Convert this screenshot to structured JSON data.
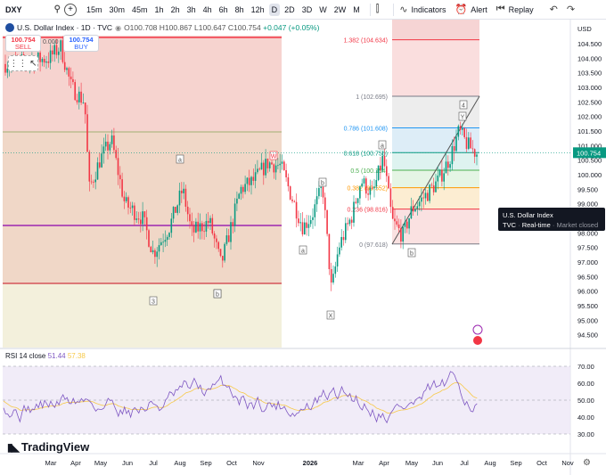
{
  "toolbar": {
    "symbol": "DXY",
    "intervals": [
      "15m",
      "30m",
      "45m",
      "1h",
      "2h",
      "3h",
      "4h",
      "6h",
      "8h",
      "12h",
      "D",
      "2D",
      "3D",
      "W",
      "2W",
      "M"
    ],
    "active_interval": "D",
    "indicators_label": "Indicators",
    "alert_label": "Alert",
    "replay_label": "Replay"
  },
  "legend": {
    "title": "U.S. Dollar Index · 1D · TVC",
    "open": "O100.708",
    "high": "H100.867",
    "low": "L100.647",
    "close": "C100.754",
    "change": "+0.047 (+0.05%)"
  },
  "trade": {
    "sell_price": "100.754",
    "sell_label": "SELL",
    "spread": "0.000",
    "buy_price": "100.754",
    "buy_label": "BUY"
  },
  "price_axis": {
    "currency": "USD",
    "ticks": [
      "104.500",
      "104.000",
      "103.500",
      "103.000",
      "102.500",
      "102.000",
      "101.500",
      "101.000",
      "100.500",
      "100.000",
      "99.500",
      "99.000",
      "98.500",
      "98.000",
      "97.500",
      "97.000",
      "96.500",
      "96.000",
      "95.500",
      "95.000",
      "94.500"
    ],
    "last_price": "100.754"
  },
  "fib": [
    {
      "level": "1.382",
      "price": "104.634",
      "color": "#f23645"
    },
    {
      "level": "1",
      "price": "102.695",
      "color": "#787b86"
    },
    {
      "level": "0.786",
      "price": "101.608",
      "color": "#2196f3"
    },
    {
      "level": "0.618",
      "price": "100.756",
      "color": "#089981"
    },
    {
      "level": "0.5",
      "price": "100.154",
      "color": "#4caf50"
    },
    {
      "level": "0.382",
      "price": "99.552",
      "color": "#ff9800"
    },
    {
      "level": "0.236",
      "price": "98.816",
      "color": "#f23645"
    },
    {
      "level": "0",
      "price": "97.618",
      "color": "#787b86"
    }
  ],
  "wave_labels": [
    "W",
    "a",
    "b",
    "a",
    "X",
    "b",
    "a",
    "b",
    "4",
    "Y",
    "3",
    "b"
  ],
  "tooltip": {
    "title": "U.S. Dollar Index",
    "exchange": "TVC",
    "mode": "Real-time",
    "status": "Market closed"
  },
  "rsi": {
    "title": "RSI 14 close",
    "value": "51.44",
    "ma": "57.38",
    "ticks": [
      "70.00",
      "60.00",
      "50.00",
      "40.00",
      "30.00"
    ]
  },
  "time_axis": [
    "Mar",
    "Apr",
    "May",
    "Jun",
    "Jul",
    "Aug",
    "Sep",
    "Oct",
    "Nov",
    "2026",
    "Mar",
    "Apr",
    "May",
    "Jun",
    "Jul",
    "Aug",
    "Sep",
    "Oct",
    "Nov"
  ],
  "logo": "TradingView",
  "colors": {
    "up": "#089981",
    "down": "#f23645",
    "rsi": "#7e57c2",
    "rsi_ma": "#f7c948",
    "fill_red": "#f8cfcf",
    "fill_green": "#e6f0d8"
  }
}
